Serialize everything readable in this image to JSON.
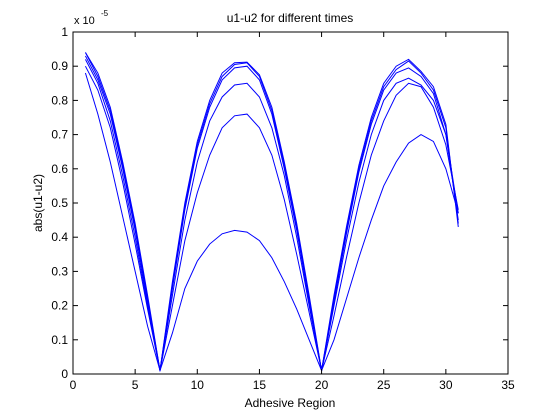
{
  "chart_data": {
    "type": "line",
    "title": "u1-u2 for different times",
    "xlabel": "Adhesive Region",
    "ylabel": "abs(u1-u2)",
    "y_multiplier": {
      "base": "x 10",
      "exponent": "-5"
    },
    "xlim": [
      0,
      35
    ],
    "ylim": [
      0,
      1
    ],
    "xticks": [
      0,
      5,
      10,
      15,
      20,
      25,
      30,
      35
    ],
    "yticks": [
      0,
      0.1,
      0.2,
      0.3,
      0.4,
      0.5,
      0.6,
      0.7,
      0.8,
      0.9,
      1
    ],
    "grid": false,
    "legend": "none",
    "line_color": "#0000ff",
    "x": [
      1,
      2,
      3,
      4,
      5,
      6,
      7,
      8,
      9,
      10,
      11,
      12,
      13,
      14,
      15,
      16,
      17,
      18,
      19,
      20,
      21,
      22,
      23,
      24,
      25,
      26,
      27,
      28,
      29,
      30,
      31
    ],
    "series": [
      {
        "values": [
          0.88,
          0.76,
          0.62,
          0.46,
          0.3,
          0.14,
          0.01,
          0.12,
          0.25,
          0.33,
          0.38,
          0.41,
          0.42,
          0.415,
          0.39,
          0.34,
          0.27,
          0.19,
          0.1,
          0.01,
          0.1,
          0.22,
          0.34,
          0.45,
          0.55,
          0.62,
          0.675,
          0.7,
          0.68,
          0.6,
          0.47
        ]
      },
      {
        "values": [
          0.9,
          0.83,
          0.72,
          0.56,
          0.38,
          0.19,
          0.01,
          0.2,
          0.39,
          0.53,
          0.64,
          0.72,
          0.755,
          0.76,
          0.72,
          0.64,
          0.51,
          0.35,
          0.18,
          0.01,
          0.17,
          0.34,
          0.5,
          0.64,
          0.74,
          0.815,
          0.85,
          0.84,
          0.78,
          0.67,
          0.48
        ]
      },
      {
        "values": [
          0.92,
          0.85,
          0.74,
          0.58,
          0.4,
          0.2,
          0.01,
          0.23,
          0.45,
          0.62,
          0.74,
          0.81,
          0.845,
          0.85,
          0.81,
          0.72,
          0.58,
          0.4,
          0.2,
          0.01,
          0.2,
          0.39,
          0.56,
          0.7,
          0.8,
          0.85,
          0.865,
          0.845,
          0.8,
          0.7,
          0.47
        ]
      },
      {
        "values": [
          0.93,
          0.86,
          0.76,
          0.6,
          0.42,
          0.21,
          0.01,
          0.25,
          0.48,
          0.66,
          0.78,
          0.86,
          0.895,
          0.9,
          0.86,
          0.76,
          0.6,
          0.42,
          0.21,
          0.01,
          0.21,
          0.41,
          0.59,
          0.73,
          0.83,
          0.88,
          0.895,
          0.87,
          0.82,
          0.7,
          0.45
        ]
      },
      {
        "values": [
          0.94,
          0.87,
          0.77,
          0.61,
          0.43,
          0.22,
          0.01,
          0.26,
          0.49,
          0.67,
          0.79,
          0.87,
          0.905,
          0.91,
          0.87,
          0.77,
          0.61,
          0.43,
          0.22,
          0.01,
          0.22,
          0.42,
          0.6,
          0.74,
          0.84,
          0.89,
          0.915,
          0.88,
          0.83,
          0.72,
          0.44
        ]
      },
      {
        "values": [
          0.94,
          0.88,
          0.78,
          0.62,
          0.44,
          0.23,
          0.01,
          0.27,
          0.5,
          0.68,
          0.8,
          0.88,
          0.91,
          0.912,
          0.875,
          0.78,
          0.62,
          0.44,
          0.23,
          0.01,
          0.23,
          0.43,
          0.61,
          0.75,
          0.85,
          0.9,
          0.92,
          0.885,
          0.84,
          0.73,
          0.43
        ]
      }
    ]
  }
}
